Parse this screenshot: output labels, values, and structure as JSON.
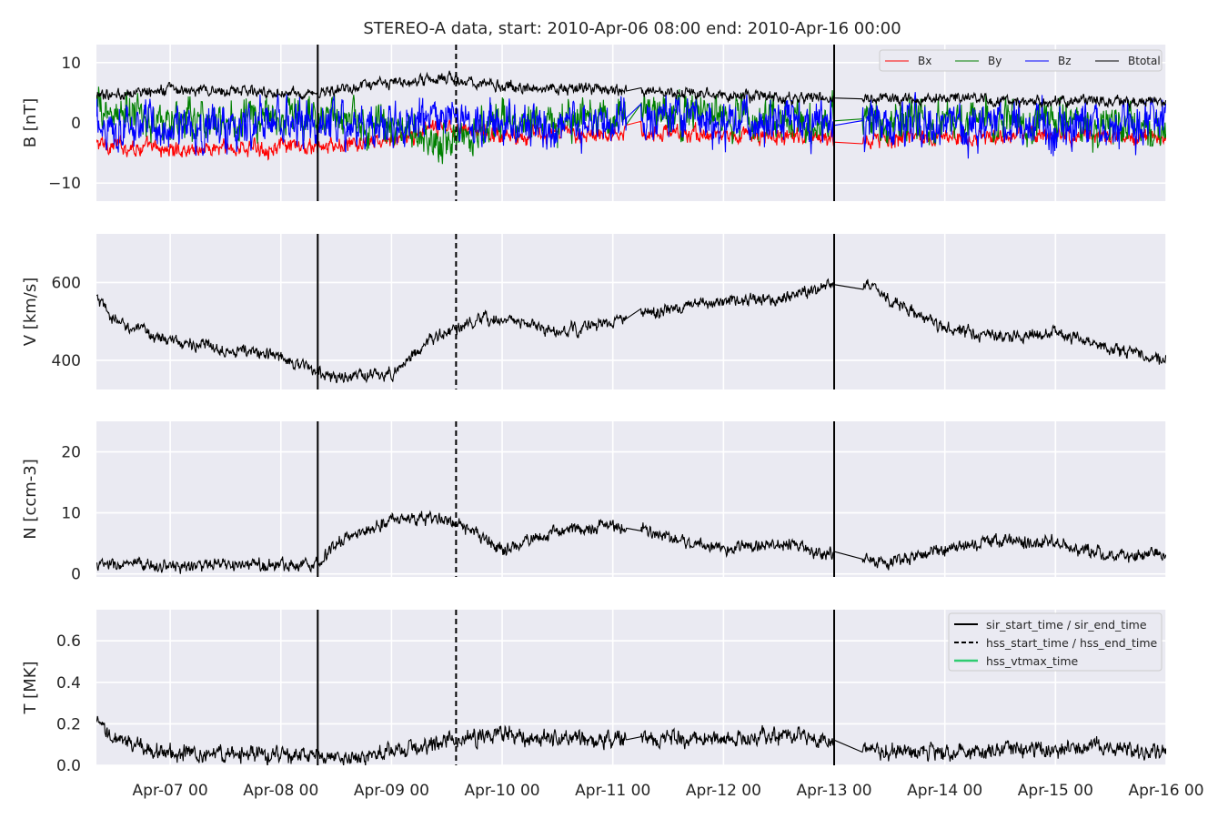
{
  "chart_data": {
    "type": "line",
    "title": "STEREO-A data, start: 2010-Apr-06 08:00  end: 2010-Apr-16 00:00",
    "x_range": [
      "2010-04-06T08:00",
      "2010-04-16T00:00"
    ],
    "x_ticks": [
      "Apr-07 00",
      "Apr-08 00",
      "Apr-09 00",
      "Apr-10 00",
      "Apr-11 00",
      "Apr-12 00",
      "Apr-13 00",
      "Apr-14 00",
      "Apr-15 00",
      "Apr-16 00"
    ],
    "x_tick_times": [
      "2010-04-07T00:00",
      "2010-04-08T00:00",
      "2010-04-09T00:00",
      "2010-04-10T00:00",
      "2010-04-11T00:00",
      "2010-04-12T00:00",
      "2010-04-13T00:00",
      "2010-04-14T00:00",
      "2010-04-15T00:00",
      "2010-04-16T00:00"
    ],
    "grid": true,
    "events": {
      "sir_start_time": "2010-04-08T08:00",
      "sir_end_time": "2010-04-13T00:00",
      "hss_start_time": "2010-04-09T14:00",
      "hss_end_time": "2010-04-13T00:00"
    },
    "data_gaps": [
      [
        "2010-04-11T03:00",
        "2010-04-11T06:00"
      ],
      [
        "2010-04-13T00:00",
        "2010-04-13T06:00"
      ]
    ],
    "panels": [
      {
        "ylabel": "B [nT]",
        "ylim": [
          -13,
          13
        ],
        "yticks": [
          -10,
          0,
          10
        ],
        "ytick_labels": [
          "−10",
          "0",
          "10"
        ],
        "legend": "top-right",
        "series": [
          {
            "name": "Bx",
            "color": "#ff0000",
            "x": [
              "2010-04-06T08:00",
              "2010-04-07T00:00",
              "2010-04-08T00:00",
              "2010-04-08T08:00",
              "2010-04-09T00:00",
              "2010-04-09T12:00",
              "2010-04-10T00:00",
              "2010-04-11T00:00",
              "2010-04-12T00:00",
              "2010-04-13T00:00",
              "2010-04-14T00:00",
              "2010-04-15T00:00",
              "2010-04-16T00:00"
            ],
            "y": [
              -3.5,
              -4.5,
              -4,
              -4.2,
              -3,
              -0.5,
              -2,
              -1.5,
              -2,
              -2.5,
              -2.5,
              -2,
              -2.5
            ],
            "noise": 1.2
          },
          {
            "name": "By",
            "color": "#008000",
            "x": [
              "2010-04-06T08:00",
              "2010-04-07T00:00",
              "2010-04-08T00:00",
              "2010-04-08T08:00",
              "2010-04-09T00:00",
              "2010-04-09T12:00",
              "2010-04-10T00:00",
              "2010-04-11T00:00",
              "2010-04-12T00:00",
              "2010-04-13T00:00",
              "2010-04-14T00:00",
              "2010-04-15T00:00",
              "2010-04-16T00:00"
            ],
            "y": [
              2,
              0,
              1,
              1,
              -1,
              -3,
              0,
              2,
              1,
              0,
              1,
              0,
              -1
            ],
            "noise": 3.0
          },
          {
            "name": "Bz",
            "color": "#0000ff",
            "x": [
              "2010-04-06T08:00",
              "2010-04-07T00:00",
              "2010-04-08T00:00",
              "2010-04-08T08:00",
              "2010-04-09T00:00",
              "2010-04-09T12:00",
              "2010-04-10T00:00",
              "2010-04-11T00:00",
              "2010-04-12T00:00",
              "2010-04-13T00:00",
              "2010-04-14T00:00",
              "2010-04-15T00:00",
              "2010-04-16T00:00"
            ],
            "y": [
              0,
              -1,
              0,
              -1,
              0,
              0,
              -0.5,
              0,
              0,
              0,
              -0.5,
              -0.5,
              0
            ],
            "noise": 3.2
          },
          {
            "name": "Btotal",
            "color": "#000000",
            "x": [
              "2010-04-06T08:00",
              "2010-04-07T00:00",
              "2010-04-08T00:00",
              "2010-04-08T08:00",
              "2010-04-09T00:00",
              "2010-04-09T12:00",
              "2010-04-10T00:00",
              "2010-04-11T00:00",
              "2010-04-12T00:00",
              "2010-04-13T00:00",
              "2010-04-14T00:00",
              "2010-04-15T00:00",
              "2010-04-16T00:00"
            ],
            "y": [
              4.5,
              5.5,
              5,
              5,
              6.5,
              7.5,
              6,
              5.5,
              4.5,
              4,
              4,
              3.5,
              3.5
            ],
            "noise": 0.8
          }
        ]
      },
      {
        "ylabel": "V [km/s]",
        "ylim": [
          325,
          725
        ],
        "yticks": [
          400,
          600
        ],
        "ytick_labels": [
          "400",
          "600"
        ],
        "series": [
          {
            "name": "",
            "color": "#000000",
            "x": [
              "2010-04-06T08:00",
              "2010-04-06T12:00",
              "2010-04-07T00:00",
              "2010-04-07T12:00",
              "2010-04-08T00:00",
              "2010-04-08T08:00",
              "2010-04-08T12:00",
              "2010-04-09T00:00",
              "2010-04-09T08:00",
              "2010-04-09T16:00",
              "2010-04-10T00:00",
              "2010-04-10T12:00",
              "2010-04-11T00:00",
              "2010-04-11T12:00",
              "2010-04-12T00:00",
              "2010-04-12T12:00",
              "2010-04-13T00:00",
              "2010-04-13T06:00",
              "2010-04-13T12:00",
              "2010-04-14T00:00",
              "2010-04-14T12:00",
              "2010-04-15T00:00",
              "2010-04-15T12:00",
              "2010-04-16T00:00"
            ],
            "y": [
              560,
              500,
              450,
              430,
              410,
              370,
              355,
              365,
              450,
              490,
              510,
              470,
              500,
              530,
              550,
              560,
              600,
              600,
              560,
              480,
              460,
              470,
              430,
              400
            ],
            "noise": 14
          }
        ]
      },
      {
        "ylabel": "N [ccm-3]",
        "ylim": [
          -0.5,
          25
        ],
        "yticks": [
          0,
          10,
          20
        ],
        "ytick_labels": [
          "0",
          "10",
          "20"
        ],
        "series": [
          {
            "name": "",
            "color": "#000000",
            "x": [
              "2010-04-06T08:00",
              "2010-04-07T00:00",
              "2010-04-08T00:00",
              "2010-04-08T08:00",
              "2010-04-08T12:00",
              "2010-04-09T00:00",
              "2010-04-09T12:00",
              "2010-04-10T00:00",
              "2010-04-10T12:00",
              "2010-04-11T00:00",
              "2010-04-11T12:00",
              "2010-04-12T00:00",
              "2010-04-12T12:00",
              "2010-04-13T00:00",
              "2010-04-13T12:00",
              "2010-04-14T00:00",
              "2010-04-14T12:00",
              "2010-04-15T00:00",
              "2010-04-15T12:00",
              "2010-04-16T00:00"
            ],
            "y": [
              1.5,
              1.3,
              1.5,
              1.8,
              5,
              9,
              9,
              4,
              7,
              8,
              6,
              4,
              5,
              3,
              2,
              4,
              5.5,
              5,
              3,
              3.5
            ],
            "noise": 0.9
          }
        ]
      },
      {
        "ylabel": "T [MK]",
        "ylim": [
          0,
          0.75
        ],
        "yticks": [
          0.0,
          0.2,
          0.4,
          0.6
        ],
        "ytick_labels": [
          "0.0",
          "0.2",
          "0.4",
          "0.6"
        ],
        "legend": "top-right",
        "series": [
          {
            "name": "",
            "color": "#000000",
            "x": [
              "2010-04-06T08:00",
              "2010-04-06T12:00",
              "2010-04-07T00:00",
              "2010-04-08T00:00",
              "2010-04-08T08:00",
              "2010-04-08T12:00",
              "2010-04-09T00:00",
              "2010-04-09T12:00",
              "2010-04-10T00:00",
              "2010-04-11T00:00",
              "2010-04-12T00:00",
              "2010-04-12T18:00",
              "2010-04-13T00:00",
              "2010-04-13T12:00",
              "2010-04-14T00:00",
              "2010-04-15T00:00",
              "2010-04-16T00:00"
            ],
            "y": [
              0.2,
              0.12,
              0.06,
              0.05,
              0.04,
              0.03,
              0.06,
              0.12,
              0.15,
              0.12,
              0.13,
              0.15,
              0.1,
              0.07,
              0.06,
              0.08,
              0.07
            ],
            "noise": 0.035
          }
        ]
      }
    ],
    "event_legend": [
      {
        "label": "sir_start_time / sir_end_time",
        "style": "solid",
        "color": "#000000"
      },
      {
        "label": "hss_start_time / hss_end_time",
        "style": "dashed",
        "color": "#000000"
      },
      {
        "label": "hss_vtmax_time",
        "style": "solid",
        "color": "#2ecc71"
      }
    ]
  }
}
